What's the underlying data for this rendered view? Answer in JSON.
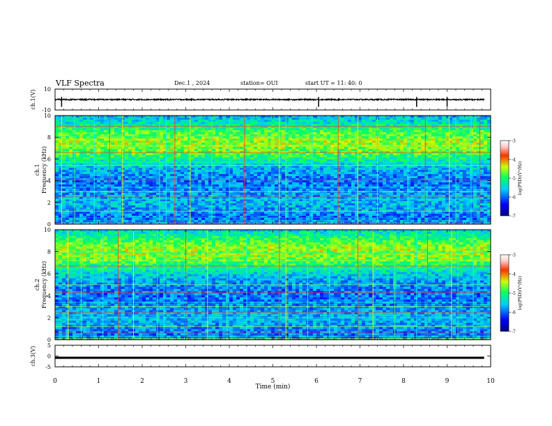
{
  "header": {
    "title": "VLF Spectra",
    "date": "Dec.1 , 2024",
    "station": "station= OUI",
    "start": "start  UT =   11: 40: 0"
  },
  "chart_data": [
    {
      "type": "line",
      "panel": "ch1-waveform",
      "ylabel": "ch.1(V)",
      "ylim": [
        -10,
        10
      ],
      "yticks": [
        "10",
        "-10"
      ],
      "xlim": [
        0,
        10
      ],
      "series": [
        {
          "values_approx": "noise about 0 V, amplitude ~0.5 V, spikes near t=0.15, 6.05, 8.3, 9.0 min"
        }
      ],
      "color": "#000000"
    },
    {
      "type": "heatmap",
      "panel": "ch1-spectrogram",
      "ylabel": "ch.1\nFrequency  (kHz)",
      "ylim": [
        0,
        10
      ],
      "yticks": [
        "0",
        "2",
        "4",
        "6",
        "8",
        "10"
      ],
      "xlim": [
        0,
        10
      ],
      "colorbar": {
        "label": "log(PSD)(V²/Hz)",
        "range": [
          -7,
          -3
        ],
        "ticks": [
          "-3",
          "-4",
          "-5",
          "-6",
          "-7"
        ]
      },
      "features": {
        "hum_lines_khz": [
          0.1,
          0.3,
          0.6,
          1.2,
          2.3,
          2.5,
          3.0,
          3.4,
          4.1,
          5.4,
          5.7,
          6.6,
          7.2,
          8.1,
          9.0
        ],
        "band_center_khz": 7.5,
        "sferics_min": [
          0.15,
          0.45,
          0.9,
          1.25,
          1.55,
          2.4,
          2.55,
          2.75,
          3.1,
          3.6,
          4.0,
          4.35,
          5.15,
          5.3,
          5.9,
          6.5,
          6.95,
          7.4,
          8.1,
          8.5,
          9.05,
          9.2,
          9.55,
          9.75
        ]
      }
    },
    {
      "type": "heatmap",
      "panel": "ch2-spectrogram",
      "ylabel": "ch.2\nFrequency  (kHz)",
      "ylim": [
        0,
        10
      ],
      "yticks": [
        "0",
        "2",
        "4",
        "6",
        "8",
        "10"
      ],
      "xlim": [
        0,
        10
      ],
      "colorbar": {
        "label": "log(PSD)(V²/Hz)",
        "range": [
          -7,
          -3
        ],
        "ticks": [
          "-3",
          "-4",
          "-5",
          "-6",
          "-7"
        ]
      },
      "features": {
        "hum_lines_khz": [
          0.1,
          0.3,
          0.6,
          1.2,
          2.0,
          2.5,
          3.0,
          3.4,
          4.3,
          5.0,
          6.4,
          6.7,
          7.2,
          7.9
        ],
        "band_center_khz": 8.0,
        "sferics_min": [
          0.3,
          0.6,
          1.1,
          1.45,
          1.8,
          2.35,
          2.5,
          3.0,
          3.5,
          3.95,
          4.4,
          5.15,
          5.3,
          5.8,
          6.3,
          6.95,
          7.3,
          7.8,
          8.3,
          8.55,
          9.1,
          9.25,
          9.6
        ]
      }
    },
    {
      "type": "line",
      "panel": "ch3-waveform",
      "ylabel": "ch.3(V)",
      "ylim": [
        -5,
        5
      ],
      "yticks": [
        "5",
        "0",
        "-5"
      ],
      "xlim": [
        0,
        10
      ],
      "series": [
        {
          "values_approx": "constant ~ -0.8 V"
        }
      ],
      "color": "#000000"
    }
  ],
  "xaxis": {
    "label": "Time  (min)",
    "ticks": [
      "0",
      "1",
      "2",
      "3",
      "4",
      "5",
      "6",
      "7",
      "8",
      "9",
      "10"
    ]
  }
}
